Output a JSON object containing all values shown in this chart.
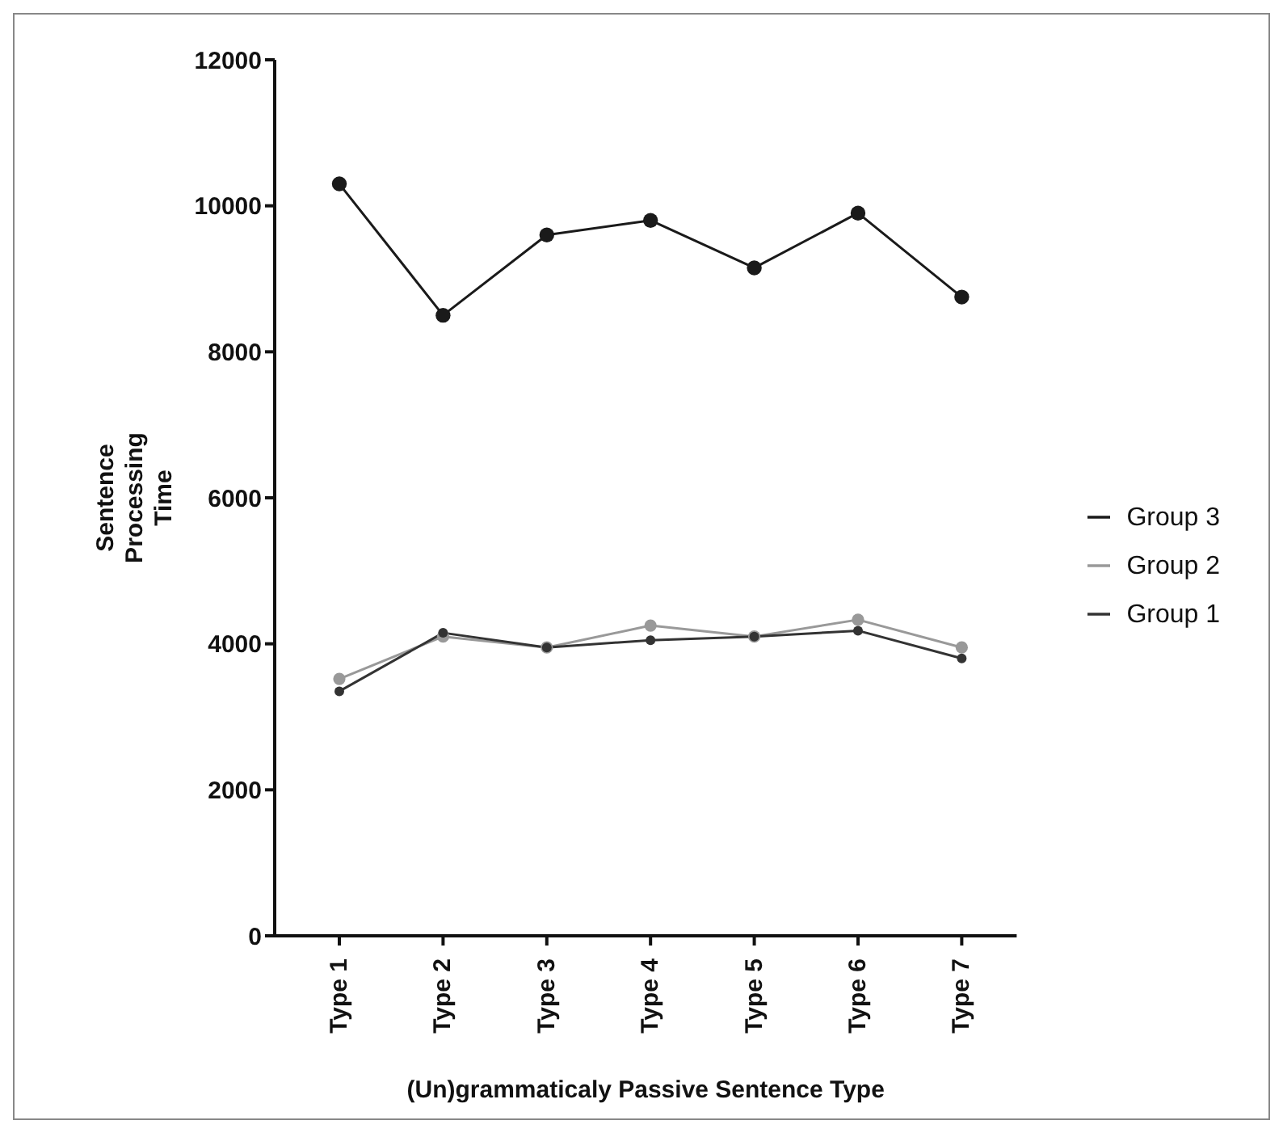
{
  "chart_data": {
    "type": "line",
    "xlabel": "(Un)grammaticaly Passive Sentence Type",
    "ylabel": "Sentence Processing Time",
    "categories": [
      "Type 1",
      "Type 2",
      "Type 3",
      "Type 4",
      "Type 5",
      "Type 6",
      "Type 7"
    ],
    "series": [
      {
        "name": "Group 3",
        "color": "#1a1a1a",
        "values": [
          10300,
          8500,
          9600,
          9800,
          9150,
          9900,
          8750
        ]
      },
      {
        "name": "Group 2",
        "color": "#999999",
        "values": [
          3520,
          4100,
          3950,
          4250,
          4100,
          4330,
          3950
        ]
      },
      {
        "name": "Group 1",
        "color": "#333333",
        "values": [
          3350,
          4150,
          3950,
          4050,
          4100,
          4180,
          3800
        ]
      }
    ],
    "ylim": [
      0,
      12000
    ],
    "yticks": [
      0,
      2000,
      4000,
      6000,
      8000,
      10000,
      12000
    ],
    "grid": false,
    "legend": "right",
    "marker": "circle",
    "line_style": "solid"
  }
}
